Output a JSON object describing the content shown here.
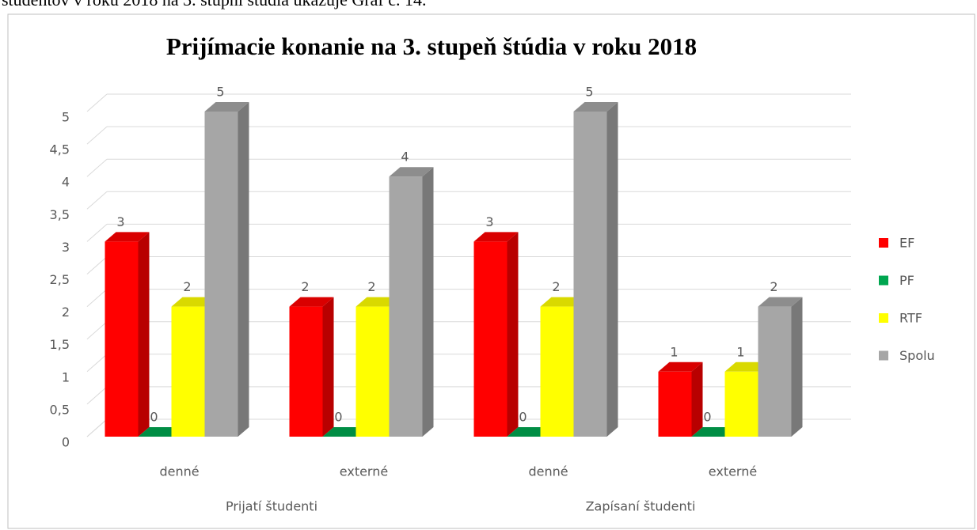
{
  "intro_text": "študentov v roku 2018 na 3. stupni štúdia ukazuje Graf č. 14.",
  "chart_data": {
    "type": "bar3d",
    "title": "Prijímacie konanie na 3. stupeň  štúdia v roku 2018",
    "categories": [
      "denné",
      "externé",
      "denné",
      "externé"
    ],
    "group_labels": [
      "Prijatí študenti",
      "Zapísaní študenti"
    ],
    "series": [
      {
        "name": "EF",
        "color": "#ff0000",
        "values": [
          3,
          2,
          3,
          1
        ]
      },
      {
        "name": "PF",
        "color": "#00a650",
        "values": [
          0,
          0,
          0,
          0
        ]
      },
      {
        "name": "RTF",
        "color": "#ffff00",
        "values": [
          2,
          2,
          2,
          1
        ]
      },
      {
        "name": "Spolu",
        "color": "#a6a6a6",
        "values": [
          5,
          4,
          5,
          2
        ]
      }
    ],
    "ylim": [
      0,
      5
    ],
    "yticks": [
      0,
      {
        "value": 0.5,
        "label": "0,5"
      },
      1,
      {
        "value": 1.5,
        "label": "1,5"
      },
      2,
      {
        "value": 2.5,
        "label": "2,5"
      },
      3,
      {
        "value": 3.5,
        "label": "3,5"
      },
      4,
      {
        "value": 4.5,
        "label": "4,5"
      },
      5
    ],
    "grid": true,
    "legend": "right"
  }
}
